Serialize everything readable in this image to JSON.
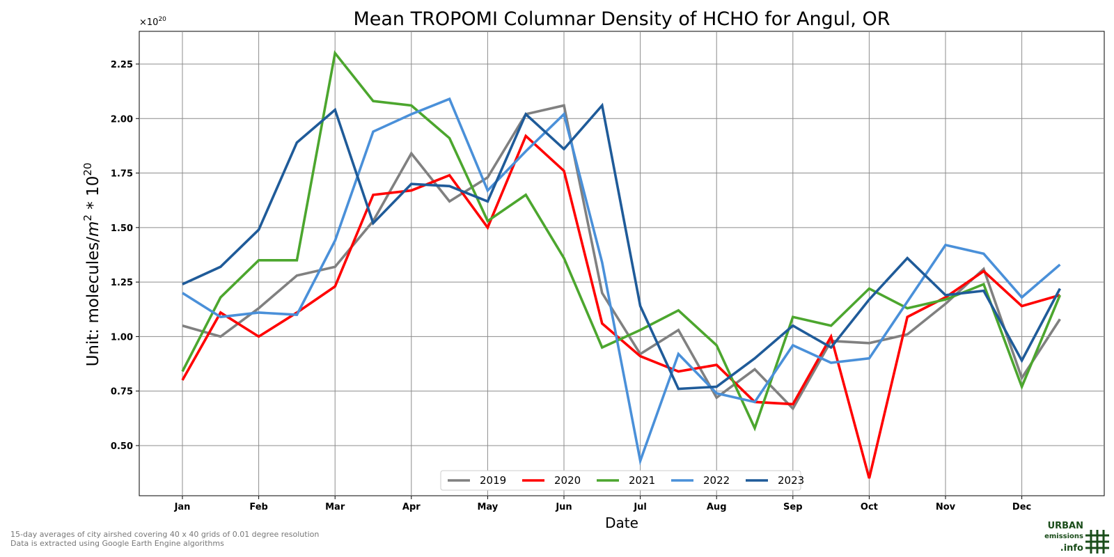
{
  "chart_data": {
    "type": "line",
    "title": "Mean TROPOMI Columnar Density of HCHO for Angul, OR",
    "xlabel": "Date",
    "ylabel_prefix": "Unit: molecules/",
    "ylabel_m": "m",
    "ylabel_m_exp": "2",
    "ylabel_mid": " * 10",
    "ylabel_exp": "20",
    "offset_base": "×10",
    "offset_exp": "20",
    "months": [
      "Jan",
      "Feb",
      "Mar",
      "Apr",
      "May",
      "Jun",
      "Jul",
      "Aug",
      "Sep",
      "Oct",
      "Nov",
      "Dec"
    ],
    "yticks": [
      "0.50",
      "0.75",
      "1.00",
      "1.25",
      "1.50",
      "1.75",
      "2.00",
      "2.25"
    ],
    "ylim": [
      0.27,
      2.4
    ],
    "grid": true,
    "legend_position": "lower center",
    "series": [
      {
        "name": "2019",
        "color": "#808080",
        "values": [
          1.05,
          1.0,
          1.13,
          1.28,
          1.32,
          1.53,
          1.84,
          1.62,
          1.73,
          2.02,
          2.06,
          1.2,
          0.92,
          1.03,
          0.72,
          0.85,
          0.67,
          0.98,
          0.97,
          1.01,
          1.15,
          1.31,
          0.81,
          1.08
        ]
      },
      {
        "name": "2020",
        "color": "#ff0000",
        "values": [
          0.8,
          1.11,
          1.0,
          1.11,
          1.23,
          1.65,
          1.67,
          1.74,
          1.5,
          1.92,
          1.76,
          1.06,
          0.91,
          0.84,
          0.87,
          0.7,
          0.69,
          1.0,
          0.35,
          1.09,
          1.18,
          1.3,
          1.14,
          1.19
        ]
      },
      {
        "name": "2021",
        "color": "#4ca62e",
        "values": [
          0.84,
          1.18,
          1.35,
          1.35,
          2.3,
          2.08,
          2.06,
          1.91,
          1.53,
          1.65,
          1.36,
          0.95,
          1.03,
          1.12,
          0.96,
          0.58,
          1.09,
          1.05,
          1.22,
          1.13,
          1.17,
          1.24,
          0.77,
          1.19
        ]
      },
      {
        "name": "2022",
        "color": "#4a90d9",
        "values": [
          1.2,
          1.09,
          1.11,
          1.1,
          1.44,
          1.94,
          2.02,
          2.09,
          1.67,
          1.85,
          2.02,
          1.34,
          0.43,
          0.92,
          0.74,
          0.7,
          0.96,
          0.88,
          0.9,
          1.16,
          1.42,
          1.38,
          1.18,
          1.33
        ]
      },
      {
        "name": "2023",
        "color": "#1f5b99",
        "values": [
          1.24,
          1.32,
          1.49,
          1.89,
          2.04,
          1.52,
          1.7,
          1.69,
          1.62,
          2.02,
          1.86,
          2.06,
          1.14,
          0.76,
          0.77,
          0.9,
          1.05,
          0.95,
          1.17,
          1.36,
          1.19,
          1.21,
          0.89,
          1.22
        ]
      }
    ]
  },
  "footnote": {
    "line1": "15-day averages of city airshed covering 40 x 40 grids of 0.01 degree resolution",
    "line2": "Data is extracted using Google Earth Engine algorithms"
  },
  "logo": {
    "word1": "URBAN",
    "word2": "emissions",
    "word3": ".info",
    "color": "#1a4d1a"
  }
}
